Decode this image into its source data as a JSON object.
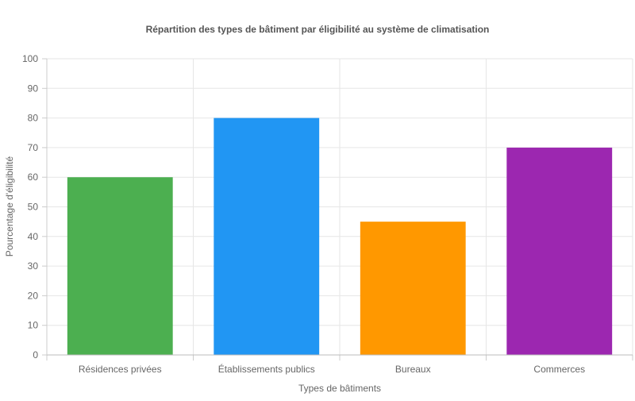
{
  "chart_data": {
    "type": "bar",
    "title": "Répartition des types de bâtiment par éligibilité au système de climatisation",
    "xlabel": "Types de bâtiments",
    "ylabel": "Pourcentage d'éligibilité",
    "categories": [
      "Résidences privées",
      "Établissements publics",
      "Bureaux",
      "Commerces"
    ],
    "values": [
      60,
      80,
      45,
      70
    ],
    "colors": [
      "#4CAF50",
      "#2196F3",
      "#FF9800",
      "#9C27B0"
    ],
    "ylim": [
      0,
      100
    ],
    "yticks": [
      0,
      10,
      20,
      30,
      40,
      50,
      60,
      70,
      80,
      90,
      100
    ],
    "grid": true,
    "legend": "none"
  }
}
